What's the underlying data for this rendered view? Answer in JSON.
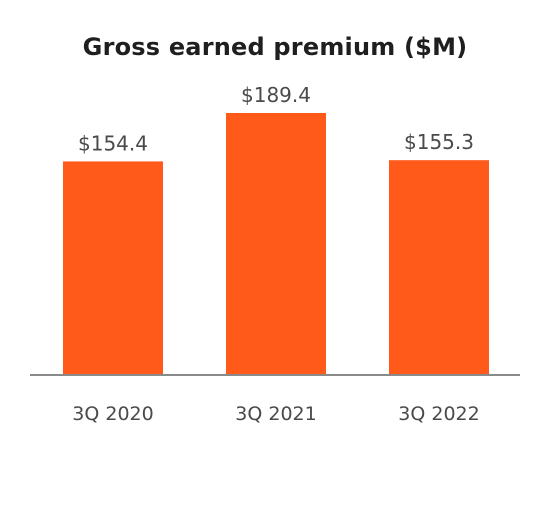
{
  "chart_data": {
    "type": "bar",
    "title": "Gross earned premium ($M)",
    "categories": [
      "3Q 2020",
      "3Q 2021",
      "3Q 2022"
    ],
    "values": [
      154.4,
      189.4,
      155.3
    ],
    "data_labels": [
      "$154.4",
      "$189.4",
      "$155.3"
    ],
    "xlabel": "",
    "ylabel": "",
    "ylim": [
      0,
      189.4
    ],
    "grid": false,
    "legend": "none",
    "bar_color": "#ff5a1a",
    "axis_color": "#8a8a8a",
    "label_color": "#4a4a4a"
  }
}
